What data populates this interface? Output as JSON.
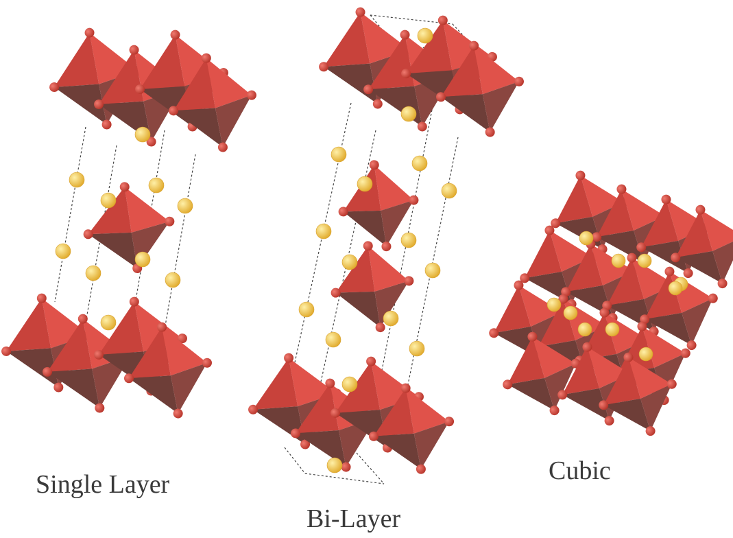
{
  "figure": {
    "captions": {
      "single_layer": "Single Layer",
      "bi_layer": "Bi-Layer",
      "cubic": "Cubic"
    },
    "colors": {
      "octahedron_light": "#e0524a",
      "octahedron_mid": "#c8423b",
      "octahedron_dark": "#6e3e38",
      "oxygen": "#c23a30",
      "cation": "#f2c84b",
      "cell_line": "#444444",
      "caption_text": "#3a3a3a"
    }
  }
}
